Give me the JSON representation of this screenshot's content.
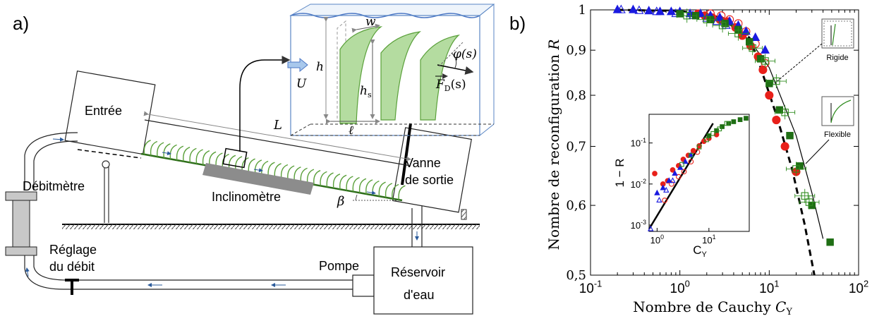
{
  "panel_a": {
    "label": "a)",
    "entree": "Entrée",
    "vanne_1": "Vanne",
    "vanne_2": "de sortie",
    "debitmetre": "Débitmètre",
    "inclinometre": "Inclinomètre",
    "reglage_1": "Réglage",
    "reglage_2": "du débit",
    "pompe": "Pompe",
    "reservoir_1": "Réservoir",
    "reservoir_2": "d'eau",
    "sym_L": "L",
    "sym_beta": "β",
    "inset": {
      "U": "U",
      "h": "h",
      "w": "w",
      "hs": "h",
      "hs_sub": "s",
      "ell": "ℓ",
      "phi": "φ(s)",
      "FD": "F",
      "FD_sub": "D",
      "FD_arg": "(s)"
    }
  },
  "panel_b": {
    "label": "b)",
    "marker_rigid": "Rigide",
    "marker_flexible": "Flexible"
  },
  "chart_data": {
    "type": "scatter",
    "title": "",
    "xlabel": "Nombre de Cauchy C_Y",
    "ylabel": "Nombre de reconfiguration R",
    "xscale": "log",
    "yscale": "log",
    "xlim": [
      0.1,
      100
    ],
    "ylim": [
      0.5,
      1.0
    ],
    "x_ticks": [
      "10^-1",
      "10^0",
      "10^1",
      "10^2"
    ],
    "y_ticks": [
      "0,5",
      "0,6",
      "0,7",
      "0,8",
      "0,9",
      "1"
    ],
    "colors": {
      "red": "#e8201a",
      "blue": "#1a1ae0",
      "green": "#2e8b1e",
      "dark_green": "#1f6e14"
    },
    "series": [
      {
        "marker": "filled-circle",
        "color": "red",
        "x": [
          1.6,
          1.9,
          2.3,
          2.8,
          3.4,
          4.2,
          5.0,
          6.2,
          7.5,
          8.5,
          10,
          12,
          15,
          20
        ],
        "y": [
          0.99,
          0.985,
          0.98,
          0.975,
          0.97,
          0.955,
          0.935,
          0.91,
          0.885,
          0.855,
          0.8,
          0.75,
          0.7,
          0.655
        ]
      },
      {
        "marker": "open-circle",
        "color": "red",
        "x": [
          2.2,
          2.9,
          3.6,
          4.5,
          5.5,
          7.0,
          9.0
        ],
        "y": [
          0.99,
          0.985,
          0.975,
          0.965,
          0.945,
          0.915,
          0.87
        ]
      },
      {
        "marker": "filled-triangle",
        "color": "blue",
        "x": [
          0.2,
          0.3,
          0.45,
          0.6,
          0.8,
          1.0,
          1.3,
          1.7,
          2.2,
          2.8,
          3.6,
          4.5,
          5.5,
          7.0,
          9.0
        ],
        "y": [
          1.0,
          1.0,
          0.997,
          0.995,
          0.995,
          0.995,
          0.99,
          0.99,
          0.985,
          0.98,
          0.97,
          0.96,
          0.945,
          0.93,
          0.9
        ]
      },
      {
        "marker": "open-triangle",
        "color": "blue",
        "x": [
          0.22,
          0.35,
          0.55,
          0.9,
          1.4,
          2.0,
          2.6,
          3.3
        ],
        "y": [
          1.0,
          0.998,
          0.995,
          0.99,
          0.985,
          0.978,
          0.97,
          0.96
        ]
      },
      {
        "marker": "filled-square",
        "color": "dark_green",
        "x": [
          1.0,
          1.5,
          2.2,
          3.2,
          4.5,
          6.0,
          8.0,
          10.0,
          13.0,
          17.0,
          22.0,
          30.0,
          48.0
        ],
        "y": [
          0.99,
          0.985,
          0.975,
          0.965,
          0.95,
          0.92,
          0.88,
          0.825,
          0.77,
          0.72,
          0.665,
          0.6,
          0.545
        ]
      },
      {
        "marker": "open-square-errorbar",
        "color": "green",
        "x": [
          1.2,
          2.0,
          3.0,
          4.5,
          6.5,
          9.0,
          12.0,
          15.0,
          20.0,
          25.0,
          28.0
        ],
        "y": [
          0.985,
          0.975,
          0.96,
          0.94,
          0.905,
          0.875,
          0.83,
          0.765,
          0.66,
          0.615,
          0.605
        ]
      }
    ],
    "fits": [
      {
        "style": "solid",
        "x": [
          0.2,
          1,
          3,
          6,
          10,
          20,
          30,
          40
        ],
        "y": [
          1.0,
          0.997,
          0.975,
          0.925,
          0.86,
          0.72,
          0.62,
          0.55
        ]
      },
      {
        "style": "dashed",
        "x": [
          0.2,
          1,
          3,
          6,
          8,
          12,
          18,
          25,
          32
        ],
        "y": [
          1.0,
          0.997,
          0.98,
          0.93,
          0.86,
          0.76,
          0.66,
          0.57,
          0.5
        ]
      }
    ],
    "inset": {
      "type": "scatter",
      "xlabel": "C_Y",
      "ylabel": "1 − R",
      "xscale": "log",
      "yscale": "log",
      "xlim": [
        0.7,
        60
      ],
      "ylim": [
        0.0007,
        0.5
      ],
      "x_ticks": [
        "10^0",
        "10^1"
      ],
      "y_ticks": [
        "10^-3",
        "10^-2",
        "10^-1"
      ],
      "series": [
        {
          "marker": "filled-circle",
          "color": "red",
          "x": [
            0.9,
            1.3,
            1.6,
            2.0,
            2.6,
            3.2,
            4.0,
            5.0,
            6.5,
            8.0,
            10,
            14
          ],
          "y": [
            0.018,
            0.01,
            0.012,
            0.022,
            0.028,
            0.04,
            0.05,
            0.065,
            0.085,
            0.11,
            0.13,
            0.16
          ]
        },
        {
          "marker": "open-circle",
          "color": "red",
          "x": [
            1.4,
            1.9,
            2.6,
            3.3,
            4.5,
            6.0
          ],
          "y": [
            0.004,
            0.01,
            0.015,
            0.02,
            0.035,
            0.06
          ]
        },
        {
          "marker": "filled-triangle",
          "color": "blue",
          "x": [
            1.0,
            1.3,
            1.7,
            2.2,
            2.8,
            3.5,
            4.5
          ],
          "y": [
            0.006,
            0.008,
            0.012,
            0.018,
            0.025,
            0.035,
            0.05
          ]
        },
        {
          "marker": "open-triangle",
          "color": "blue",
          "x": [
            0.75,
            1.1,
            1.5,
            2.0
          ],
          "y": [
            0.0008,
            0.004,
            0.007,
            0.012
          ]
        },
        {
          "marker": "filled-square",
          "color": "dark_green",
          "x": [
            10,
            14,
            18,
            24,
            30,
            40,
            52
          ],
          "y": [
            0.15,
            0.2,
            0.25,
            0.3,
            0.33,
            0.37,
            0.4
          ]
        },
        {
          "marker": "open-square",
          "color": "green",
          "x": [
            3.0,
            4.5,
            6.5,
            9,
            12,
            16,
            22
          ],
          "y": [
            0.03,
            0.05,
            0.08,
            0.12,
            0.17,
            0.22,
            0.3
          ]
        }
      ],
      "fit": {
        "style": "solid",
        "x": [
          0.7,
          12
        ],
        "y": [
          0.0008,
          0.3
        ]
      }
    }
  }
}
